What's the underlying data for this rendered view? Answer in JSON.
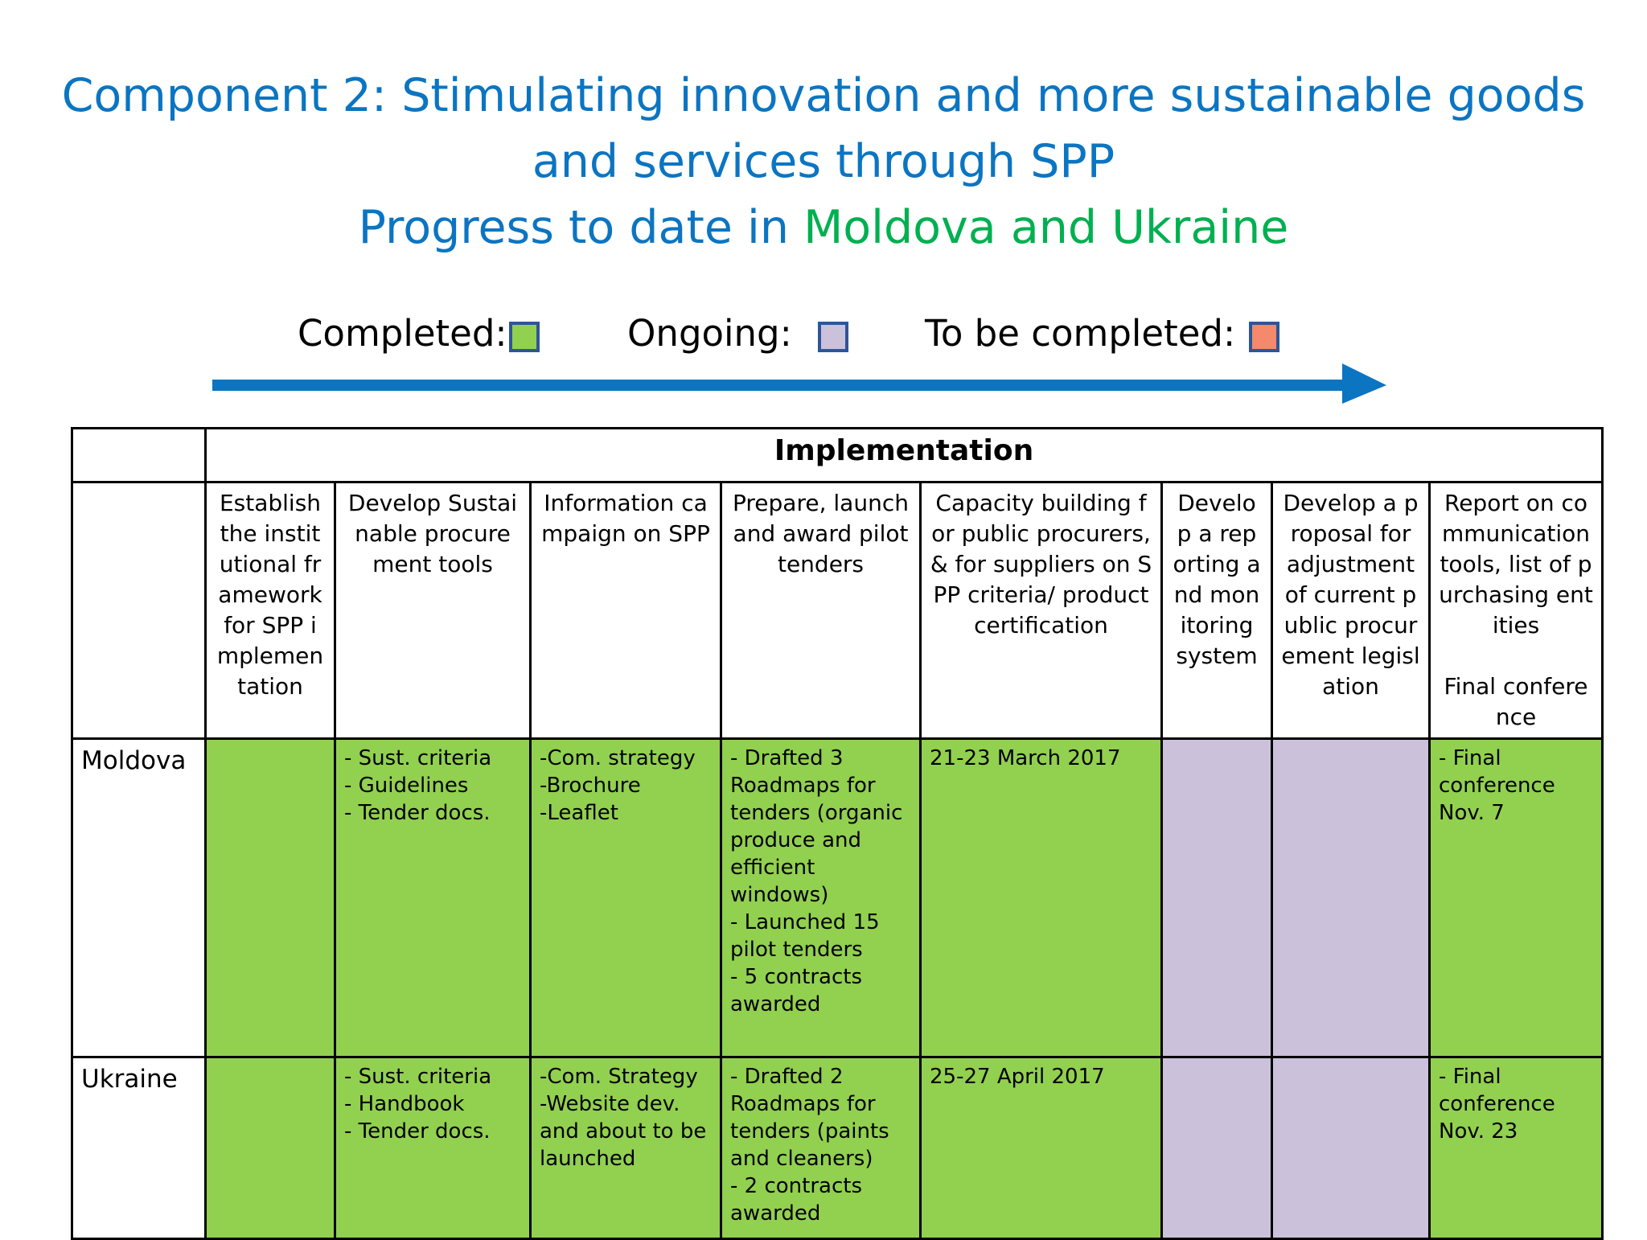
{
  "title": {
    "line1": "Component 2: Stimulating innovation and more sustainable goods",
    "line2": "and services through SPP",
    "line3_prefix": "Progress to date in ",
    "line3_highlight": "Moldova and Ukraine"
  },
  "colors": {
    "title_blue": "#0B75C2",
    "highlight_green": "#00B050",
    "completed": "#92D050",
    "ongoing": "#CCC1DA",
    "to_be_completed": "#F4896B",
    "arrow": "#0B75C2"
  },
  "legend": {
    "completed_label": "Completed:",
    "ongoing_label": "Ongoing:",
    "to_be_completed_label": "To be completed:"
  },
  "table": {
    "group_header": "Implementation",
    "columns": [
      "Establish the institutional framework for SPP implementation",
      "Develop Sustainable procurement tools",
      "Information campaign on SPP",
      "Prepare, launch and award pilot tenders",
      "Capacity building for public procurers, & for suppliers on  SPP criteria/ product certification",
      "Develop a reporting and monitoring system",
      "Develop a proposal for adjustment of current public procurement legislation",
      "Report on communication tools, list of purchasing entities\n\nFinal conference"
    ],
    "rows": [
      {
        "country": "Moldova",
        "cells": [
          "",
          "- Sust. criteria\n- Guidelines\n- Tender docs.",
          "-Com.  strategy\n-Brochure\n-Leaflet",
          "- Drafted 3 Roadmaps for tenders (organic produce and efficient windows)\n- Launched 15 pilot tenders\n- 5 contracts awarded",
          "21-23 March 2017",
          "",
          "",
          "- Final conference Nov. 7"
        ],
        "status": [
          "completed",
          "completed",
          "completed",
          "completed",
          "completed",
          "ongoing",
          "ongoing",
          "completed"
        ]
      },
      {
        "country": "Ukraine",
        "cells": [
          "",
          "- Sust. criteria\n- Handbook\n- Tender docs.",
          "-Com.  Strategy\n-Website dev. and about to be launched",
          "- Drafted 2 Roadmaps for tenders (paints and cleaners)\n- 2 contracts awarded",
          "25-27 April 2017",
          "",
          "",
          "- Final conference Nov. 23"
        ],
        "status": [
          "completed",
          "completed",
          "completed",
          "completed",
          "completed",
          "ongoing",
          "ongoing",
          "completed"
        ]
      }
    ]
  }
}
